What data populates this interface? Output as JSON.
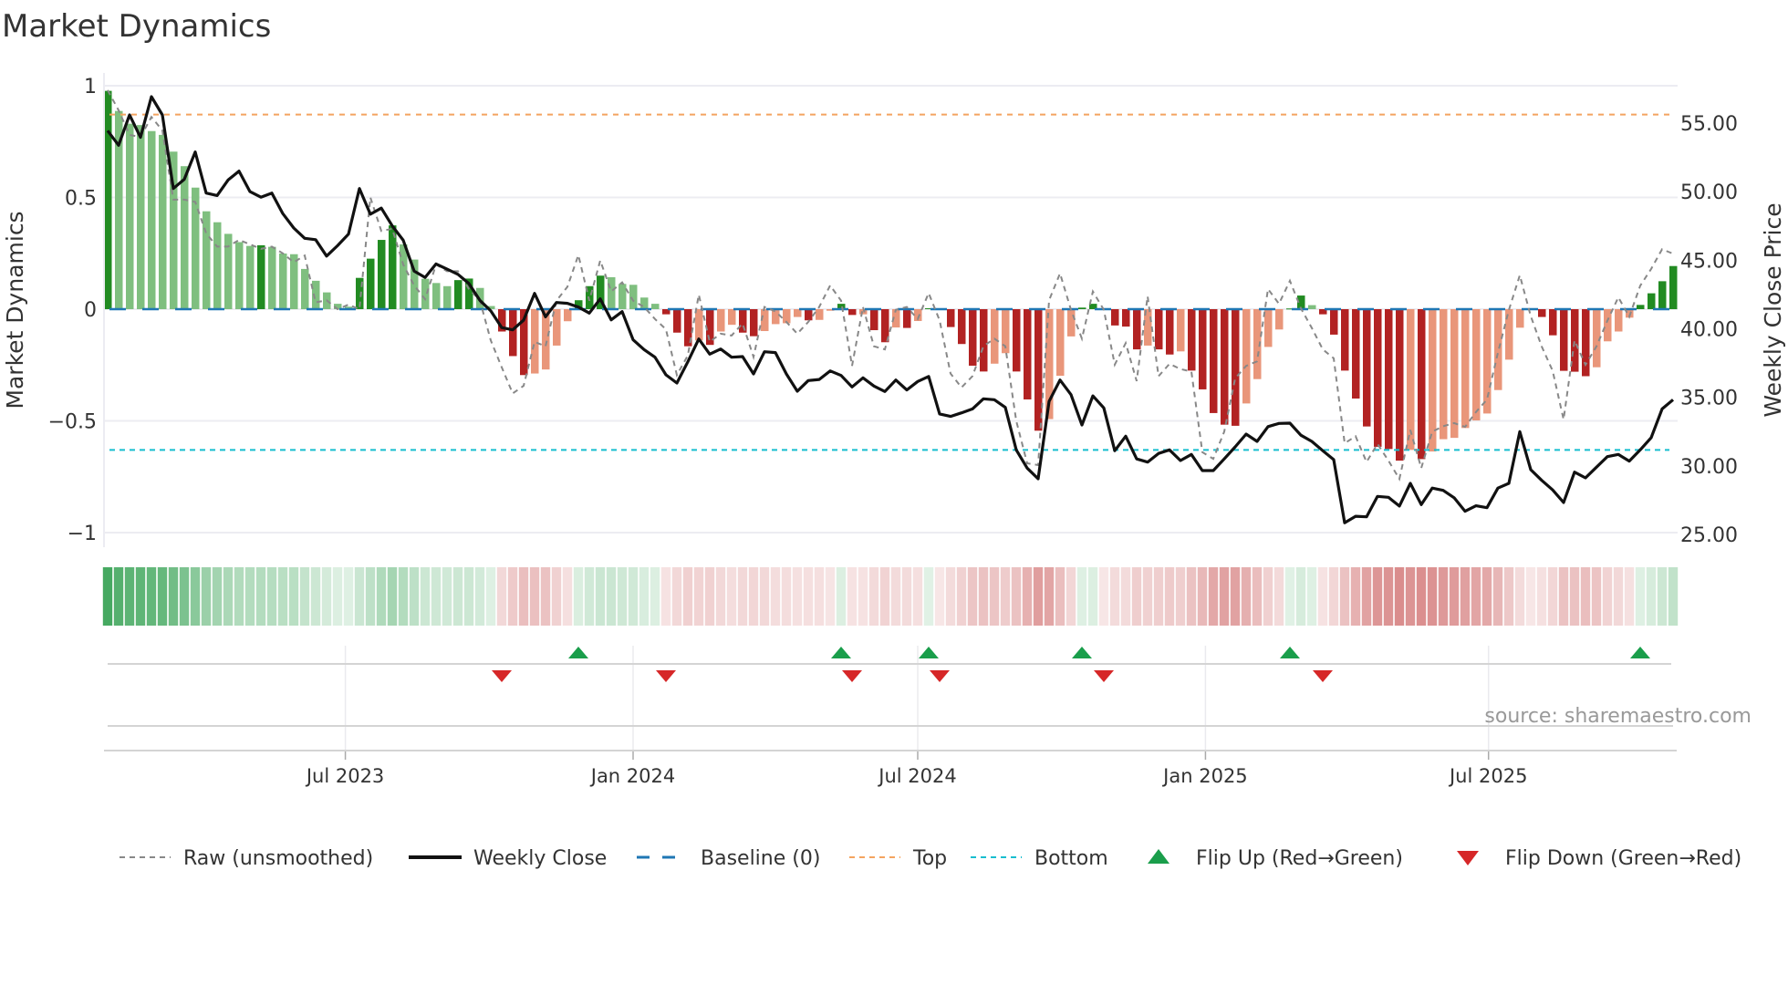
{
  "chart_data": {
    "type": "bar",
    "title": "Market Dynamics",
    "ylabel": "Market Dynamics",
    "y2label": "Weekly Close Price",
    "source": "source: sharemaestro.com",
    "ylim": [
      -1.05,
      1.05
    ],
    "y2lim": [
      23.0,
      58.4
    ],
    "yticks": [
      {
        "v": 1,
        "label": "1"
      },
      {
        "v": 0.5,
        "label": "0.5"
      },
      {
        "v": 0,
        "label": "0"
      },
      {
        "v": -0.5,
        "label": "−0.5"
      },
      {
        "v": -1,
        "label": "−1"
      }
    ],
    "y2ticks": [
      {
        "v": 55,
        "label": "55.00"
      },
      {
        "v": 50,
        "label": "50.00"
      },
      {
        "v": 45,
        "label": "45.00"
      },
      {
        "v": 40,
        "label": "40.00"
      },
      {
        "v": 35,
        "label": "35.00"
      },
      {
        "v": 30,
        "label": "30.00"
      },
      {
        "v": 25,
        "label": "25.00"
      }
    ],
    "xticks": [
      {
        "date": "2023-07-01",
        "label": "Jul 2023"
      },
      {
        "date": "2024-01-01",
        "label": "Jan 2024"
      },
      {
        "date": "2024-07-01",
        "label": "Jul 2024"
      },
      {
        "date": "2025-01-01",
        "label": "Jan 2025"
      },
      {
        "date": "2025-07-01",
        "label": "Jul 2025"
      }
    ],
    "start_week": "2023-01-30",
    "week_step_days": 7,
    "grid": true,
    "legend_position": "bottom",
    "levels": {
      "top": 0.871,
      "bottom": -0.63,
      "baseline": 0
    },
    "colors": {
      "green_strong": "#228b22",
      "green_light": "#7fbf7f",
      "red_strong": "#b22222",
      "red_light": "#e9967a",
      "close": "#111111",
      "raw": "#888888",
      "baseline": "#1f77b4",
      "top": "#f4a460",
      "bottom": "#17becf",
      "flip_up": "#1a9e4b",
      "flip_down": "#d62728",
      "heat_green": "50,160,80",
      "heat_red": "200,85,85"
    },
    "series": [
      {
        "name": "Market Dynamics (smoothed)",
        "values": [
          0.977,
          0.887,
          0.83,
          0.824,
          0.797,
          0.78,
          0.705,
          0.64,
          0.544,
          0.438,
          0.389,
          0.337,
          0.3,
          0.283,
          0.286,
          0.279,
          0.249,
          0.246,
          0.18,
          0.127,
          0.075,
          0.024,
          0.011,
          0.14,
          0.226,
          0.31,
          0.375,
          0.29,
          0.222,
          0.136,
          0.117,
          0.103,
          0.13,
          0.137,
          0.095,
          0.014,
          -0.1,
          -0.21,
          -0.295,
          -0.288,
          -0.27,
          -0.163,
          -0.054,
          0.04,
          0.103,
          0.15,
          0.143,
          0.113,
          0.109,
          0.052,
          0.024,
          -0.023,
          -0.105,
          -0.166,
          -0.14,
          -0.16,
          -0.1,
          -0.07,
          -0.105,
          -0.121,
          -0.098,
          -0.067,
          -0.063,
          -0.035,
          -0.05,
          -0.048,
          -0.007,
          0.024,
          -0.026,
          -0.023,
          -0.094,
          -0.148,
          -0.082,
          -0.084,
          -0.053,
          0.004,
          -0.003,
          -0.08,
          -0.156,
          -0.253,
          -0.279,
          -0.244,
          -0.197,
          -0.279,
          -0.404,
          -0.544,
          -0.492,
          -0.298,
          -0.122,
          0.007,
          0.024,
          -0.003,
          -0.073,
          -0.078,
          -0.18,
          -0.163,
          -0.18,
          -0.203,
          -0.189,
          -0.275,
          -0.359,
          -0.465,
          -0.517,
          -0.522,
          -0.422,
          -0.313,
          -0.169,
          -0.091,
          0.003,
          0.061,
          0.018,
          -0.023,
          -0.114,
          -0.275,
          -0.4,
          -0.525,
          -0.616,
          -0.626,
          -0.678,
          -0.63,
          -0.671,
          -0.637,
          -0.582,
          -0.576,
          -0.532,
          -0.498,
          -0.467,
          -0.362,
          -0.226,
          -0.083,
          -0.003,
          -0.035,
          -0.117,
          -0.276,
          -0.28,
          -0.3,
          -0.26,
          -0.144,
          -0.1,
          -0.038,
          0.019,
          0.071,
          0.125,
          0.193
        ]
      },
      {
        "name": "Raw (unsmoothed)",
        "values": [
          0.98,
          0.89,
          0.78,
          0.77,
          0.86,
          0.8,
          0.49,
          0.49,
          0.48,
          0.34,
          0.28,
          0.28,
          0.31,
          0.29,
          0.27,
          0.28,
          0.25,
          0.21,
          0.24,
          0.03,
          0.04,
          0,
          0.02,
          0,
          0.5,
          0.35,
          0.36,
          0.2,
          0.106,
          0.045,
          0.2,
          0.17,
          0.17,
          0.09,
          0.04,
          -0.14,
          -0.26,
          -0.377,
          -0.343,
          -0.146,
          -0.166,
          0.038,
          0.1,
          0.242,
          0.038,
          0.218,
          0.079,
          0.12,
          0.038,
          0.01,
          -0.044,
          -0.09,
          -0.295,
          -0.207,
          0.065,
          -0.146,
          -0.11,
          -0.118,
          -0.064,
          -0.214,
          0.01,
          -0.01,
          -0.057,
          -0.11,
          -0.057,
          0.01,
          0.106,
          0.038,
          -0.254,
          0.01,
          -0.166,
          -0.18,
          -0.003,
          0.01,
          -0.044,
          0.072,
          -0.05,
          -0.288,
          -0.35,
          -0.3,
          -0.166,
          -0.132,
          -0.166,
          -0.5,
          -0.69,
          -0.698,
          0.04,
          0.16,
          -0.003,
          -0.132,
          0.079,
          -0.003,
          -0.248,
          -0.152,
          -0.322,
          0.058,
          -0.3,
          -0.245,
          -0.268,
          -0.279,
          -0.64,
          -0.67,
          -0.548,
          -0.31,
          -0.254,
          -0.234,
          0.09,
          0.024,
          0.127,
          0.004,
          -0.084,
          -0.18,
          -0.22,
          -0.6,
          -0.569,
          -0.684,
          -0.603,
          -0.678,
          -0.76,
          -0.541,
          -0.711,
          -0.548,
          -0.524,
          -0.51,
          -0.527,
          -0.46,
          -0.405,
          -0.195,
          -0.004,
          0.152,
          -0.031,
          -0.167,
          -0.276,
          -0.494,
          -0.14,
          -0.249,
          -0.167,
          -0.052,
          0.053,
          -0.034,
          0.105,
          0.18,
          0.268,
          0.248
        ]
      },
      {
        "name": "Weekly Close",
        "axis": "right",
        "values": [
          54.45,
          53.38,
          55.6,
          53.96,
          56.93,
          55.6,
          50.23,
          50.9,
          52.9,
          49.9,
          49.72,
          50.85,
          51.5,
          50.0,
          49.6,
          49.9,
          48.4,
          47.35,
          46.6,
          46.5,
          45.3,
          46.06,
          46.9,
          50.23,
          48.35,
          48.8,
          47.5,
          46.46,
          44.2,
          43.74,
          44.73,
          44.35,
          43.97,
          43.3,
          42.07,
          41.3,
          40.08,
          39.92,
          40.63,
          42.58,
          40.87,
          41.91,
          41.85,
          41.58,
          41.14,
          42.18,
          40.65,
          41.25,
          39.19,
          38.48,
          37.92,
          36.64,
          36.04,
          37.59,
          39.25,
          38.15,
          38.52,
          37.92,
          37.97,
          36.7,
          38.32,
          38.26,
          36.7,
          35.44,
          36.22,
          36.3,
          36.92,
          36.59,
          35.75,
          36.42,
          35.82,
          35.42,
          36.26,
          35.53,
          36.15,
          36.52,
          33.78,
          33.6,
          33.86,
          34.15,
          34.89,
          34.82,
          34.26,
          31.16,
          29.83,
          29.05,
          34.7,
          36.26,
          35.19,
          32.98,
          35.1,
          34.22,
          31.1,
          32.16,
          30.5,
          30.27,
          30.9,
          31.16,
          30.38,
          30.83,
          29.65,
          29.65,
          30.5,
          31.38,
          32.31,
          31.78,
          32.86,
          33.09,
          33.11,
          32.23,
          31.78,
          31.1,
          30.45,
          25.84,
          26.32,
          26.28,
          27.77,
          27.7,
          27.06,
          28.72,
          27.17,
          28.37,
          28.21,
          27.67,
          26.68,
          27.08,
          26.94,
          28.37,
          28.72,
          32.49,
          29.72,
          28.94,
          28.24,
          27.32,
          29.54,
          29.12,
          29.9,
          30.67,
          30.83,
          30.34,
          31.16,
          32.05,
          34.15,
          34.82
        ]
      }
    ],
    "flip_up_weeks": [
      43,
      67,
      75,
      89,
      108,
      140
    ],
    "flip_down_weeks": [
      36,
      51,
      68,
      76,
      91,
      111
    ],
    "legend": [
      {
        "key": "raw",
        "label": "Raw (unsmoothed)"
      },
      {
        "key": "close",
        "label": "Weekly Close"
      },
      {
        "key": "baseline",
        "label": "Baseline (0)"
      },
      {
        "key": "top",
        "label": "Top"
      },
      {
        "key": "bottom",
        "label": "Bottom"
      },
      {
        "key": "flip_up",
        "label": "Flip Up (Red→Green)"
      },
      {
        "key": "flip_down",
        "label": "Flip Down (Green→Red)"
      }
    ]
  }
}
